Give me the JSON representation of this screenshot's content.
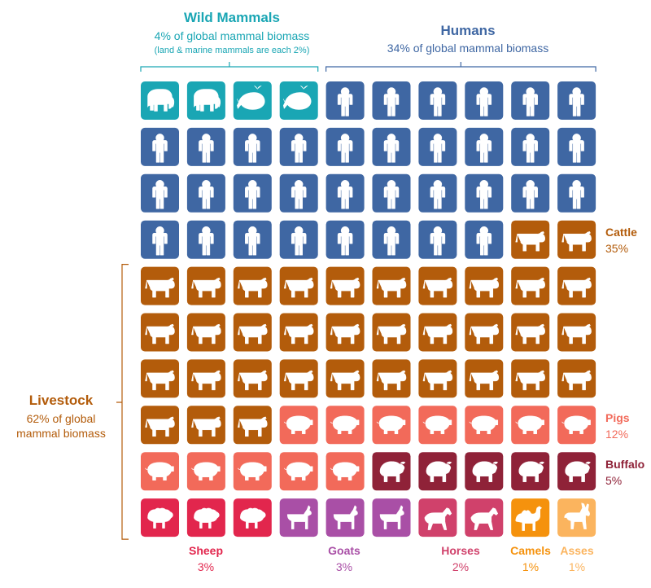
{
  "chart_data": {
    "type": "waffle",
    "grid": {
      "columns": 10,
      "rows": 10
    },
    "groups": [
      {
        "name": "Wild Mammals",
        "subtitle": "4% of global mammal biomass",
        "note": "(land & marine mammals are each 2%)",
        "color": "#1aa6b4"
      },
      {
        "name": "Humans",
        "subtitle": "34% of global mammal biomass",
        "color": "#3f67a3"
      },
      {
        "name": "Livestock",
        "subtitle_line1": "62% of global",
        "subtitle_line2": "mammal biomass",
        "color": "#b35c0b"
      }
    ],
    "categories": [
      {
        "key": "land",
        "name": "",
        "percent": "",
        "value": 2,
        "color": "#1aa6b4",
        "icon": "elephant-icon"
      },
      {
        "key": "marine",
        "name": "",
        "percent": "",
        "value": 2,
        "color": "#1aa6b4",
        "icon": "whale-icon"
      },
      {
        "key": "humans",
        "name": "",
        "percent": "",
        "value": 34,
        "color": "#3f67a3",
        "icon": "person-icon"
      },
      {
        "key": "cattle",
        "name": "Cattle",
        "percent": "35%",
        "value": 35,
        "color": "#b35c0b",
        "icon": "cow-icon"
      },
      {
        "key": "pigs",
        "name": "Pigs",
        "percent": "12%",
        "value": 12,
        "color": "#f26a5a",
        "icon": "pig-icon"
      },
      {
        "key": "buffalo",
        "name": "Buffalo",
        "percent": "5%",
        "value": 5,
        "color": "#8f2238",
        "icon": "buffalo-icon"
      },
      {
        "key": "sheep",
        "name": "Sheep",
        "percent": "3%",
        "value": 3,
        "color": "#e2264d",
        "icon": "sheep-icon"
      },
      {
        "key": "goats",
        "name": "Goats",
        "percent": "3%",
        "value": 3,
        "color": "#a94fa6",
        "icon": "goat-icon"
      },
      {
        "key": "horses",
        "name": "Horses",
        "percent": "2%",
        "value": 2,
        "color": "#d0416b",
        "icon": "horse-icon"
      },
      {
        "key": "camels",
        "name": "Camels",
        "percent": "1%",
        "value": 1,
        "color": "#f5920d",
        "icon": "camel-icon"
      },
      {
        "key": "asses",
        "name": "Asses",
        "percent": "1%",
        "value": 1,
        "color": "#fbb45e",
        "icon": "donkey-icon"
      }
    ]
  }
}
